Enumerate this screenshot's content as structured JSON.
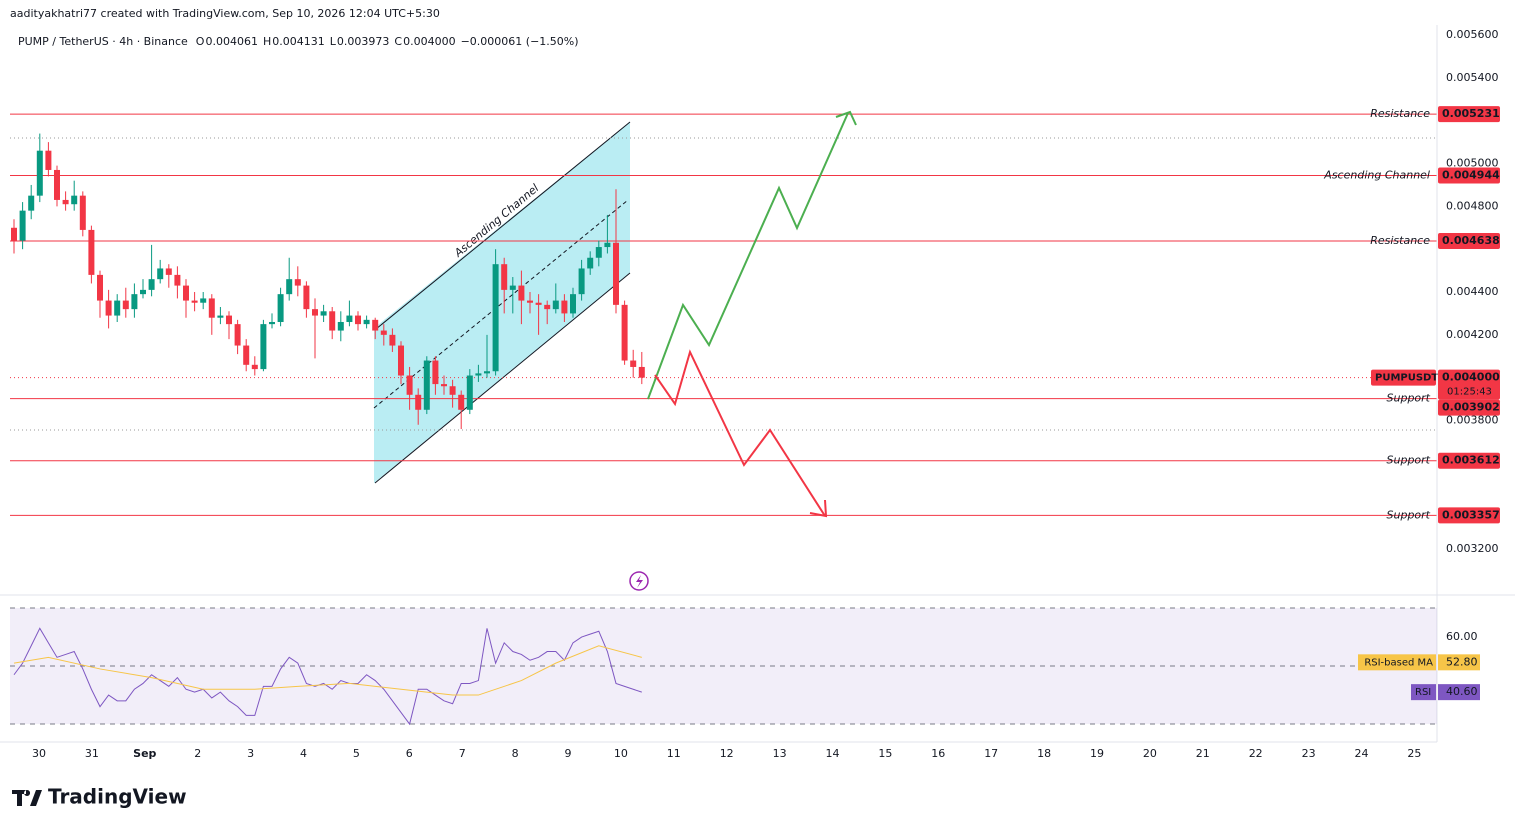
{
  "header": {
    "credit": "aadityakhatri77 created with TradingView.com, Sep 10, 2026 12:04 UTC+5:30"
  },
  "chart_data": {
    "type": "candlestick",
    "symbol": "PUMP / TetherUS · 4h · Binance",
    "ohlc_legend": {
      "keys": [
        "O",
        "H",
        "L",
        "C"
      ],
      "open": "0.004061",
      "high": "0.004131",
      "low": "0.003973",
      "close": "0.004000",
      "change": "−0.000061 (−1.50%)"
    },
    "categories": [
      "30",
      "31",
      "Sep",
      "2",
      "3",
      "4",
      "5",
      "6",
      "7",
      "8",
      "9",
      "10",
      "11",
      "12",
      "13",
      "14",
      "15",
      "16",
      "17",
      "18",
      "19",
      "20",
      "21",
      "22",
      "23",
      "24",
      "25"
    ],
    "candles": {
      "open": [
        0.0047,
        0.00464,
        0.00478,
        0.00485,
        0.00506,
        0.00497,
        0.00483,
        0.00481,
        0.00485,
        0.00469,
        0.00448,
        0.00436,
        0.00429,
        0.00436,
        0.00432,
        0.00439,
        0.00441,
        0.00446,
        0.00451,
        0.00448,
        0.00443,
        0.00436,
        0.00435,
        0.00437,
        0.00428,
        0.00429,
        0.00425,
        0.00415,
        0.00406,
        0.00404,
        0.00425,
        0.00426,
        0.00439,
        0.00446,
        0.00443,
        0.00432,
        0.00429,
        0.00431,
        0.00422,
        0.00426,
        0.00429,
        0.00425,
        0.00427,
        0.00422,
        0.0042,
        0.00415,
        0.00401,
        0.00392,
        0.00385,
        0.00408,
        0.00397,
        0.00396,
        0.00392,
        0.00385,
        0.00401,
        0.00402,
        0.00403,
        0.00453,
        0.00441,
        0.00443,
        0.00436,
        0.00435,
        0.00434,
        0.00432,
        0.00436,
        0.0043,
        0.00439,
        0.00451,
        0.00456,
        0.00461,
        0.00463,
        0.00434,
        0.00408,
        0.00405
      ],
      "high": [
        0.00474,
        0.00482,
        0.0049,
        0.00514,
        0.0051,
        0.00499,
        0.00487,
        0.00492,
        0.00487,
        0.00471,
        0.0045,
        0.00441,
        0.00439,
        0.00442,
        0.00444,
        0.00446,
        0.00462,
        0.00455,
        0.00453,
        0.00452,
        0.00446,
        0.0044,
        0.0044,
        0.00439,
        0.00433,
        0.00431,
        0.00427,
        0.00418,
        0.0041,
        0.00427,
        0.0043,
        0.00442,
        0.00456,
        0.00452,
        0.00445,
        0.00437,
        0.00434,
        0.00433,
        0.00431,
        0.00436,
        0.00431,
        0.00429,
        0.00428,
        0.00425,
        0.00423,
        0.00417,
        0.00405,
        0.00395,
        0.0041,
        0.0041,
        0.00401,
        0.00399,
        0.00394,
        0.00404,
        0.00406,
        0.0042,
        0.0046,
        0.00456,
        0.00447,
        0.0045,
        0.0044,
        0.00439,
        0.00436,
        0.00444,
        0.00439,
        0.00442,
        0.00455,
        0.00459,
        0.00464,
        0.00476,
        0.00488,
        0.00436,
        0.00413,
        0.00412
      ],
      "low": [
        0.00458,
        0.0046,
        0.00474,
        0.00482,
        0.00494,
        0.0048,
        0.00478,
        0.00478,
        0.00466,
        0.00444,
        0.00428,
        0.00423,
        0.00426,
        0.00428,
        0.00428,
        0.00437,
        0.00438,
        0.00444,
        0.00442,
        0.00437,
        0.00428,
        0.00431,
        0.00432,
        0.0042,
        0.00425,
        0.00418,
        0.00411,
        0.00403,
        0.00401,
        0.00403,
        0.00423,
        0.00424,
        0.00436,
        0.00438,
        0.00428,
        0.00409,
        0.00426,
        0.00418,
        0.00417,
        0.00424,
        0.00422,
        0.00423,
        0.00418,
        0.00415,
        0.00412,
        0.00397,
        0.00385,
        0.00378,
        0.00383,
        0.00392,
        0.00392,
        0.00386,
        0.00376,
        0.00383,
        0.00398,
        0.004,
        0.00401,
        0.0043,
        0.0043,
        0.00425,
        0.0043,
        0.0042,
        0.00425,
        0.0043,
        0.00426,
        0.00428,
        0.00436,
        0.00448,
        0.00452,
        0.00458,
        0.0043,
        0.00406,
        0.004,
        0.00397
      ],
      "close": [
        0.00464,
        0.00478,
        0.00485,
        0.00506,
        0.00497,
        0.00483,
        0.00481,
        0.00485,
        0.00469,
        0.00448,
        0.00436,
        0.00429,
        0.00436,
        0.00432,
        0.00439,
        0.00441,
        0.00446,
        0.00451,
        0.00448,
        0.00443,
        0.00436,
        0.00435,
        0.00437,
        0.00428,
        0.00429,
        0.00425,
        0.00415,
        0.00406,
        0.00404,
        0.00425,
        0.00426,
        0.00439,
        0.00446,
        0.00443,
        0.00432,
        0.00429,
        0.00431,
        0.00422,
        0.00426,
        0.00429,
        0.00425,
        0.00427,
        0.00422,
        0.0042,
        0.00415,
        0.00401,
        0.00392,
        0.00385,
        0.00408,
        0.00397,
        0.00396,
        0.00392,
        0.00385,
        0.00401,
        0.00402,
        0.00403,
        0.00453,
        0.00441,
        0.00443,
        0.00436,
        0.00435,
        0.00434,
        0.00432,
        0.00436,
        0.0043,
        0.00439,
        0.00451,
        0.00456,
        0.00461,
        0.00463,
        0.00434,
        0.00408,
        0.00405,
        0.004
      ]
    },
    "up_color": "#089981",
    "down_color": "#f23645",
    "ylim": [
      0.002985,
      0.005647
    ],
    "yticks": [
      {
        "value": 0.0056,
        "label": "0.005600"
      },
      {
        "value": 0.0054,
        "label": "0.005400"
      },
      {
        "value": 0.005,
        "label": "0.005000"
      },
      {
        "value": 0.0048,
        "label": "0.004800"
      },
      {
        "value": 0.0044,
        "label": "0.004400"
      },
      {
        "value": 0.0042,
        "label": "0.004200"
      },
      {
        "value": 0.0038,
        "label": "0.003800"
      },
      {
        "value": 0.0032,
        "label": "0.003200"
      }
    ],
    "levels": [
      {
        "name": "Resistance",
        "value": 0.005231,
        "label": "0.005231"
      },
      {
        "name": "Ascending Channel",
        "value": 0.004944,
        "label": "0.004944"
      },
      {
        "name": "Resistance",
        "value": 0.004638,
        "label": "0.004638"
      },
      {
        "name": "Support",
        "value": 0.003902,
        "label": "0.003902"
      },
      {
        "name": "Support",
        "value": 0.003612,
        "label": "0.003612"
      },
      {
        "name": "Support",
        "value": 0.003357,
        "label": "0.003357"
      }
    ],
    "level_color": "#f23645",
    "current_price": {
      "symbol": "PUMPUSDT",
      "value": 0.004,
      "label": "0.004000",
      "countdown": "01:25:43"
    },
    "channel_label": "Ascending Channel",
    "rsi": {
      "color": "#7e57c2",
      "ylim": [
        24.5,
        73.8
      ],
      "yticks": [
        {
          "value": 60,
          "label": "60.00"
        }
      ],
      "bands": [
        70,
        50,
        30
      ],
      "values": [
        47,
        51,
        57,
        63,
        58,
        53,
        54,
        55,
        49,
        42,
        36,
        40,
        38,
        38,
        42,
        44,
        47,
        45,
        43,
        46,
        42,
        41,
        42,
        39,
        41,
        38,
        36,
        33,
        33,
        43,
        43,
        49,
        53,
        51,
        44,
        43,
        44,
        42,
        45,
        44,
        44,
        47,
        45,
        42,
        38,
        34,
        30,
        42,
        42,
        40,
        38,
        37,
        44,
        44,
        45,
        63,
        51,
        58,
        55,
        54,
        52,
        53,
        55,
        55,
        52,
        58,
        60,
        61,
        62,
        55,
        44,
        43,
        42,
        41
      ],
      "badge_name": "RSI",
      "badge": "40.60",
      "ma_name": "RSI-based MA",
      "ma_badge": "52.80",
      "ma": {
        "color": "#f7c548",
        "x": [
          0,
          4,
          10,
          16,
          22,
          28,
          33,
          39,
          45,
          51,
          54,
          59,
          63,
          68,
          73
        ],
        "values": [
          51,
          53,
          49,
          46,
          42,
          42,
          43,
          44,
          42,
          40,
          40,
          45,
          51,
          57,
          53
        ]
      }
    },
    "logo": "TradingView"
  }
}
